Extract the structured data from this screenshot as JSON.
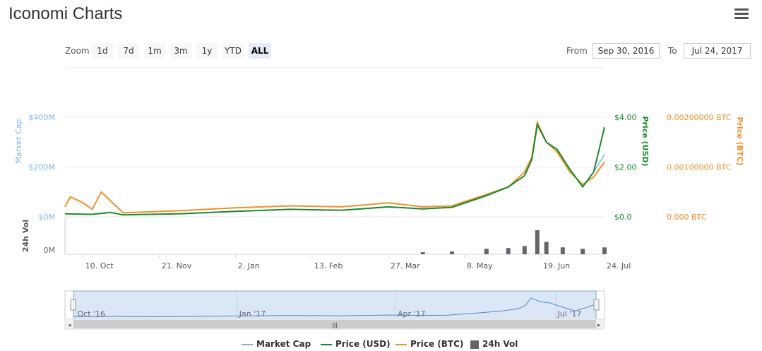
{
  "title": "Iconomi Charts",
  "menu_icon": "hamburger-menu-icon",
  "zoom": {
    "label": "Zoom",
    "buttons": [
      "1d",
      "7d",
      "1m",
      "3m",
      "1y",
      "YTD",
      "ALL"
    ],
    "active": "ALL"
  },
  "range": {
    "from_label": "From",
    "from_value": "Sep 30, 2016",
    "to_label": "To",
    "to_value": "Jul 24, 2017"
  },
  "axes": {
    "market_cap_title": "Market Cap",
    "price_usd_title": "Price (USD)",
    "price_btc_title": "Price (BTC)",
    "vol_title": "24h Vol",
    "market_cap_ticks": [
      "$0M",
      "$200M",
      "$400M"
    ],
    "usd_ticks": [
      "$0.0",
      "$2.00",
      "$4.00"
    ],
    "btc_ticks": [
      "0.000 BTC",
      "0.00100000 BTC",
      "0.00200000 BTC"
    ],
    "vol_ticks": [
      "0M"
    ],
    "x_ticks": [
      "10. Oct",
      "21. Nov",
      "2. Jan",
      "13. Feb",
      "27. Mar",
      "8. May",
      "19. Jun",
      "24. Jul"
    ]
  },
  "navigator": {
    "x_ticks": [
      "Oct '16",
      "Jan '17",
      "Apr '17",
      "Jul '17"
    ],
    "scrollbar_grip": "|||"
  },
  "legend": [
    {
      "name": "Market Cap",
      "color": "#7cb5ec",
      "kind": "line"
    },
    {
      "name": "Price (USD)",
      "color": "#1a8a2e",
      "kind": "line"
    },
    {
      "name": "Price (BTC)",
      "color": "#f0912a",
      "kind": "line"
    },
    {
      "name": "24h Vol",
      "color": "#666666",
      "kind": "box"
    }
  ],
  "colors": {
    "market_cap": "#7cb5ec",
    "usd": "#1a8a2e",
    "btc": "#f0912a",
    "vol": "#666666",
    "navigator_fill": "#dbe7f7"
  },
  "chart_data": {
    "type": "line",
    "x_range": [
      "2016-09-30",
      "2017-07-24"
    ],
    "series": [
      {
        "name": "Market Cap",
        "axis": "Market Cap ($M)",
        "x": [
          "2016-09-30",
          "2016-10-15",
          "2016-10-25",
          "2016-11-01",
          "2016-12-01",
          "2017-01-02",
          "2017-02-01",
          "2017-03-01",
          "2017-03-27",
          "2017-04-15",
          "2017-05-01",
          "2017-05-20",
          "2017-06-01",
          "2017-06-10",
          "2017-06-14",
          "2017-06-17",
          "2017-06-22",
          "2017-06-28",
          "2017-07-05",
          "2017-07-12",
          "2017-07-18",
          "2017-07-24"
        ],
        "values": [
          12,
          10,
          18,
          8,
          12,
          22,
          30,
          26,
          40,
          32,
          38,
          85,
          120,
          165,
          230,
          370,
          300,
          270,
          190,
          120,
          180,
          250
        ]
      },
      {
        "name": "Price (USD)",
        "axis": "Price (USD)",
        "x": [
          "2016-09-30",
          "2016-10-15",
          "2016-10-25",
          "2016-11-01",
          "2016-12-01",
          "2017-01-02",
          "2017-02-01",
          "2017-03-01",
          "2017-03-27",
          "2017-04-15",
          "2017-05-01",
          "2017-05-20",
          "2017-06-01",
          "2017-06-10",
          "2017-06-14",
          "2017-06-17",
          "2017-06-22",
          "2017-06-28",
          "2017-07-05",
          "2017-07-12",
          "2017-07-18",
          "2017-07-24"
        ],
        "values": [
          0.12,
          0.1,
          0.18,
          0.08,
          0.12,
          0.22,
          0.3,
          0.26,
          0.4,
          0.32,
          0.38,
          0.85,
          1.2,
          1.65,
          2.3,
          3.7,
          3.0,
          2.7,
          1.9,
          1.2,
          1.8,
          3.6
        ]
      },
      {
        "name": "Price (BTC)",
        "axis": "Price (BTC)",
        "x": [
          "2016-09-30",
          "2016-10-03",
          "2016-10-10",
          "2016-10-15",
          "2016-10-20",
          "2016-11-01",
          "2016-12-01",
          "2017-01-02",
          "2017-02-01",
          "2017-03-01",
          "2017-03-27",
          "2017-04-15",
          "2017-05-01",
          "2017-05-20",
          "2017-06-01",
          "2017-06-10",
          "2017-06-14",
          "2017-06-17",
          "2017-06-22",
          "2017-06-28",
          "2017-07-05",
          "2017-07-12",
          "2017-07-18",
          "2017-07-24"
        ],
        "values": [
          0.0002,
          0.0004,
          0.00028,
          0.00015,
          0.0005,
          8e-05,
          0.00012,
          0.00018,
          0.00022,
          0.0002,
          0.00028,
          0.0002,
          0.00022,
          0.00045,
          0.0006,
          0.0009,
          0.0012,
          0.0019,
          0.0015,
          0.0013,
          0.0009,
          0.00065,
          0.0008,
          0.0011
        ]
      },
      {
        "name": "24h Vol",
        "axis": "24h Vol ($M)",
        "x": [
          "2017-04-15",
          "2017-05-01",
          "2017-05-20",
          "2017-06-01",
          "2017-06-10",
          "2017-06-17",
          "2017-06-22",
          "2017-07-01",
          "2017-07-12",
          "2017-07-24"
        ],
        "values": [
          0.3,
          0.4,
          0.8,
          0.9,
          1.2,
          3.5,
          1.8,
          1.0,
          0.8,
          1.0
        ]
      }
    ],
    "ylim_market_cap": [
      0,
      400
    ],
    "ylim_usd": [
      0,
      4
    ],
    "ylim_btc": [
      0,
      0.002
    ],
    "xlabel": "",
    "ylabel": "Market Cap",
    "grid": true,
    "legend_position": "bottom"
  }
}
